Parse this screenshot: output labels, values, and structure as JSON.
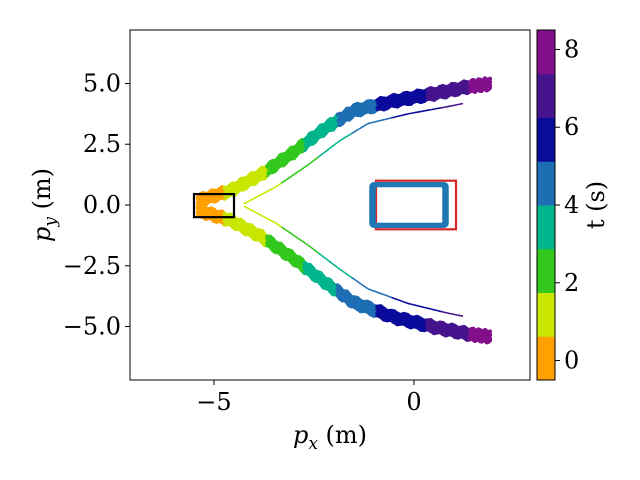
{
  "chart_data": {
    "type": "line",
    "xlabel": "p_x (m)",
    "ylabel": "p_y (m)",
    "xlim": [
      -7.1,
      2.9
    ],
    "ylim": [
      -7.2,
      7.2
    ],
    "x_ticks": [
      -5,
      0
    ],
    "x_tick_labels": [
      "−5",
      "0"
    ],
    "y_ticks": [
      5.0,
      2.5,
      0.0,
      -2.5,
      -5.0
    ],
    "y_tick_labels": [
      "5.0",
      "2.5",
      "0.0",
      "−2.5",
      "−5.0"
    ],
    "grid": false,
    "colorbar": {
      "label": "t (s)",
      "range": [
        -0.5,
        8.5
      ],
      "ticks": [
        0,
        2,
        4,
        6,
        8
      ],
      "tick_labels": [
        "0",
        "2",
        "4",
        "6",
        "8"
      ],
      "colors": [
        "#ffa000",
        "#c8e600",
        "#32c81e",
        "#00b48c",
        "#1e6eb4",
        "#0a0a9b",
        "#46148c",
        "#820f8c"
      ]
    },
    "trajectories": [
      {
        "name": "upper",
        "points": [
          [
            -5.4,
            0.2
          ],
          [
            -4.6,
            0.6
          ],
          [
            -3.8,
            1.3
          ],
          [
            -3.0,
            2.2
          ],
          [
            -2.2,
            3.2
          ],
          [
            -1.5,
            3.9
          ],
          [
            -0.5,
            4.3
          ],
          [
            0.5,
            4.6
          ],
          [
            1.4,
            4.9
          ],
          [
            1.9,
            5.0
          ]
        ],
        "times": [
          0.0,
          0.8,
          1.6,
          2.6,
          3.6,
          4.6,
          5.6,
          6.4,
          7.4,
          8.2
        ]
      },
      {
        "name": "lower",
        "points": [
          [
            -5.4,
            -0.2
          ],
          [
            -4.6,
            -0.6
          ],
          [
            -3.8,
            -1.3
          ],
          [
            -3.0,
            -2.2
          ],
          [
            -2.2,
            -3.2
          ],
          [
            -1.5,
            -4.0
          ],
          [
            -0.5,
            -4.6
          ],
          [
            0.5,
            -5.0
          ],
          [
            1.4,
            -5.3
          ],
          [
            1.9,
            -5.4
          ]
        ],
        "times": [
          0.0,
          0.8,
          1.6,
          2.6,
          3.6,
          4.6,
          5.6,
          6.4,
          7.4,
          8.2
        ]
      }
    ],
    "start_box": {
      "x": [
        -5.5,
        -4.5
      ],
      "y": [
        -0.5,
        0.45
      ],
      "color": "#000000"
    },
    "obstacle_red": {
      "x": [
        -1.0,
        1.0
      ],
      "y": [
        -1.0,
        1.0
      ],
      "color": "#d62728"
    },
    "obstacle_blue": {
      "x": [
        -1.0,
        0.8
      ],
      "y": [
        -0.8,
        0.8
      ],
      "color": "#1f77b4"
    }
  }
}
